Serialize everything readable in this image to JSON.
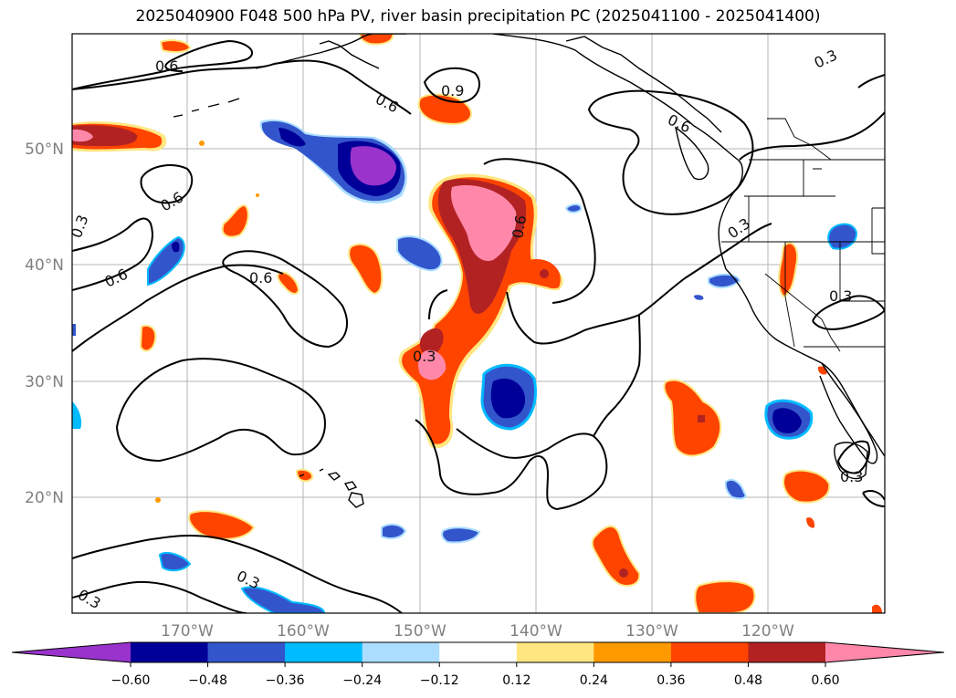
{
  "title": "2025040900 F048 500 hPa PV, river basin precipitation PC (2025041100 - 2025041400)",
  "lat_labels": [
    "50°N",
    "40°N",
    "30°N",
    "20°N"
  ],
  "lon_labels": [
    "170°W",
    "160°W",
    "150°W",
    "140°W",
    "130°W",
    "120°W"
  ],
  "contour_labels": [
    "0.6",
    "0.6",
    "0.6",
    "0.6",
    "0.6",
    "0.3",
    "0.6",
    "0.9",
    "0.3",
    "0.3",
    "0.3",
    "0.3",
    "0.3",
    "0.6",
    "0.3",
    "0.3"
  ],
  "colorbar": {
    "ticks": [
      "−0.60",
      "−0.48",
      "−0.36",
      "−0.24",
      "−0.12",
      "0.12",
      "0.24",
      "0.36",
      "0.48",
      "0.60"
    ],
    "colors": [
      "#9933cc",
      "#000099",
      "#3355cc",
      "#00bbff",
      "#aaddff",
      "#ffffff",
      "#ffe680",
      "#ff9900",
      "#ff4400",
      "#b22222",
      "#ff88aa"
    ]
  },
  "fill_colors": {
    "pink": "#ff88aa",
    "darkred": "#b22222",
    "redorange": "#ff4400",
    "orange": "#ff9900",
    "yellow": "#ffe680",
    "purple": "#9933cc",
    "navy": "#000099",
    "blue": "#3355cc",
    "cyan": "#00bbff",
    "lightblue": "#aaddff"
  }
}
